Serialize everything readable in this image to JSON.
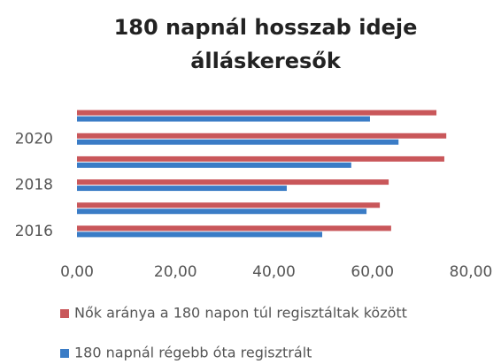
{
  "chart_data": {
    "type": "hbar",
    "title": [
      "180 napnál hosszab ideje",
      "álláskeresők"
    ],
    "categories": [
      "2016",
      null,
      "2018",
      null,
      "2020",
      null
    ],
    "series": [
      {
        "name": "Nők aránya a 180 napon túl regisztáltak között",
        "color": "#c9575a",
        "values": [
          63.8,
          61.5,
          63.3,
          74.6,
          75.0,
          73.0
        ]
      },
      {
        "name": "180 napnál régebb óta regisztrált",
        "color": "#3a7cc6",
        "values": [
          49.8,
          58.8,
          42.6,
          55.7,
          65.3,
          59.5
        ]
      }
    ],
    "xlim": [
      0,
      80
    ],
    "xticks": [
      {
        "value": 0,
        "label": "0,00"
      },
      {
        "value": 20,
        "label": "20,00"
      },
      {
        "value": 40,
        "label": "40,00"
      },
      {
        "value": 60,
        "label": "60,00"
      },
      {
        "value": 80,
        "label": "80,00"
      }
    ],
    "legend": "bottom"
  }
}
